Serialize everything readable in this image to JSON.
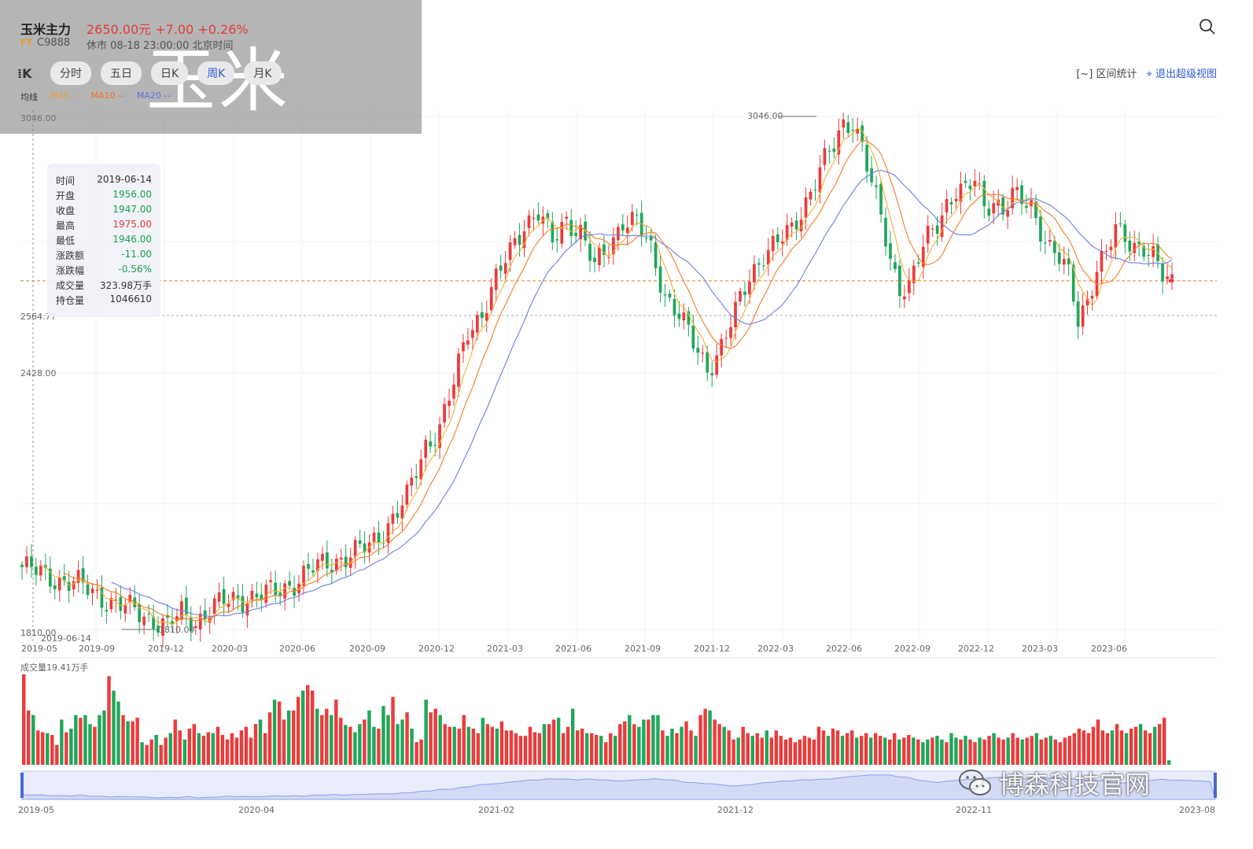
{
  "header": {
    "title": "玉米主力",
    "price_line": "2650.00元 +7.00 +0.26%",
    "badge": "FT",
    "code": "C9888",
    "status": "休市 08-18 23:00:00 北京时间"
  },
  "tabs": [
    {
      "label": "分时"
    },
    {
      "label": "五日"
    },
    {
      "label": "日K"
    },
    {
      "label": "周K",
      "active": true
    },
    {
      "label": "月K"
    }
  ],
  "ma_legend": {
    "label": "均线",
    "ma5": "MA5 --",
    "ma10": "MA10 --",
    "ma20": "MA20 --"
  },
  "overlay_text": "玉米",
  "toolbar": {
    "range_stat": "区间统计",
    "exit_view": "退出超级视图"
  },
  "tooltip": {
    "rows": [
      {
        "label": "时间",
        "value": "2019-06-14",
        "tone": "plain"
      },
      {
        "label": "开盘",
        "value": "1956.00",
        "tone": "green"
      },
      {
        "label": "收盘",
        "value": "1947.00",
        "tone": "green"
      },
      {
        "label": "最高",
        "value": "1975.00",
        "tone": "red"
      },
      {
        "label": "最低",
        "value": "1946.00",
        "tone": "green"
      },
      {
        "label": "涨跌额",
        "value": "-11.00",
        "tone": "green"
      },
      {
        "label": "涨跌幅",
        "value": "-0.56%",
        "tone": "green"
      },
      {
        "label": "成交量",
        "value": "323.98万手",
        "tone": "plain"
      },
      {
        "label": "持仓量",
        "value": "1046610",
        "tone": "plain"
      }
    ]
  },
  "chart_data": {
    "type": "candlestick",
    "y_labels": [
      "3046.00",
      "2564.77",
      "2428.00",
      "1810.00"
    ],
    "y_range": [
      1810,
      3046
    ],
    "max_marker": "3046.00",
    "min_marker": "1810.00",
    "crosshair_date": "2019-06-14",
    "current_price_line": 2650,
    "x_labels": [
      "2019-05",
      "2019-09",
      "2019-12",
      "2020-03",
      "2020-06",
      "2020-09",
      "2020-12",
      "2021-03",
      "2021-06",
      "2021-09",
      "2021-12",
      "2022-03",
      "2022-06",
      "2022-09",
      "2022-12",
      "2023-03",
      "2023-06"
    ],
    "volume_label": "成交量19.41万手",
    "navigator_labels": [
      "2019-05",
      "2020-04",
      "2021-02",
      "2021-12",
      "2022-11",
      "2023-08"
    ],
    "colors": {
      "up": "#ee3a3a",
      "down": "#1fa65a",
      "ma5": "#f2b233",
      "ma10": "#f27c2a",
      "ma20": "#6c7fe0"
    },
    "close_anchors": [
      [
        0,
        1960
      ],
      [
        8,
        1930
      ],
      [
        12,
        1918
      ],
      [
        16,
        1895
      ],
      [
        20,
        1870
      ],
      [
        24,
        1855
      ],
      [
        28,
        1835
      ],
      [
        31,
        1815
      ],
      [
        34,
        1850
      ],
      [
        37,
        1830
      ],
      [
        40,
        1858
      ],
      [
        43,
        1875
      ],
      [
        46,
        1885
      ],
      [
        50,
        1890
      ],
      [
        54,
        1900
      ],
      [
        58,
        1925
      ],
      [
        62,
        1955
      ],
      [
        66,
        1975
      ],
      [
        70,
        1990
      ],
      [
        74,
        2010
      ],
      [
        78,
        2065
      ],
      [
        82,
        2125
      ],
      [
        86,
        2255
      ],
      [
        89,
        2300
      ],
      [
        92,
        2400
      ],
      [
        95,
        2530
      ],
      [
        98,
        2575
      ],
      [
        101,
        2650
      ],
      [
        104,
        2720
      ],
      [
        107,
        2790
      ],
      [
        110,
        2815
      ],
      [
        113,
        2740
      ],
      [
        116,
        2800
      ],
      [
        119,
        2770
      ],
      [
        122,
        2680
      ],
      [
        125,
        2730
      ],
      [
        128,
        2800
      ],
      [
        131,
        2790
      ],
      [
        134,
        2720
      ],
      [
        137,
        2620
      ],
      [
        140,
        2570
      ],
      [
        143,
        2495
      ],
      [
        146,
        2440
      ],
      [
        149,
        2495
      ],
      [
        152,
        2570
      ],
      [
        155,
        2660
      ],
      [
        158,
        2720
      ],
      [
        161,
        2740
      ],
      [
        164,
        2770
      ],
      [
        167,
        2845
      ],
      [
        170,
        2920
      ],
      [
        173,
        2970
      ],
      [
        175,
        3025
      ],
      [
        177,
        3040
      ],
      [
        179,
        2980
      ],
      [
        181,
        2880
      ],
      [
        183,
        2800
      ],
      [
        185,
        2700
      ],
      [
        187,
        2640
      ],
      [
        189,
        2640
      ],
      [
        191,
        2700
      ],
      [
        193,
        2750
      ],
      [
        195,
        2790
      ],
      [
        197,
        2840
      ],
      [
        199,
        2870
      ],
      [
        201,
        2860
      ],
      [
        203,
        2890
      ],
      [
        205,
        2830
      ],
      [
        207,
        2850
      ],
      [
        209,
        2820
      ],
      [
        211,
        2850
      ],
      [
        213,
        2840
      ],
      [
        215,
        2830
      ],
      [
        217,
        2780
      ],
      [
        219,
        2730
      ],
      [
        221,
        2700
      ],
      [
        223,
        2660
      ],
      [
        225,
        2560
      ],
      [
        227,
        2610
      ],
      [
        229,
        2680
      ],
      [
        231,
        2710
      ],
      [
        233,
        2770
      ],
      [
        235,
        2760
      ],
      [
        237,
        2740
      ],
      [
        239,
        2730
      ],
      [
        241,
        2700
      ],
      [
        243,
        2660
      ],
      [
        245,
        2650
      ]
    ],
    "volume_values": [
      1.0,
      0.6,
      0.55,
      0.38,
      0.36,
      0.35,
      0.33,
      0.22,
      0.5,
      0.36,
      0.4,
      0.55,
      0.52,
      0.55,
      0.45,
      0.42,
      0.55,
      0.6,
      0.98,
      0.82,
      0.7,
      0.55,
      0.48,
      0.48,
      0.52,
      0.25,
      0.22,
      0.28,
      0.33,
      0.22,
      0.3,
      0.35,
      0.5,
      0.38,
      0.28,
      0.4,
      0.45,
      0.35,
      0.32,
      0.36,
      0.35,
      0.42,
      0.33,
      0.28,
      0.35,
      0.3,
      0.38,
      0.42,
      0.3,
      0.45,
      0.5,
      0.35,
      0.58,
      0.72,
      0.7,
      0.5,
      0.6,
      0.6,
      0.75,
      0.82,
      0.88,
      0.82,
      0.62,
      0.55,
      0.62,
      0.55,
      0.72,
      0.52,
      0.44,
      0.42,
      0.36,
      0.45,
      0.5,
      0.6,
      0.42,
      0.4,
      0.65,
      0.55,
      0.75,
      0.45,
      0.5,
      0.58,
      0.4,
      0.25,
      0.28,
      0.72,
      0.58,
      0.62,
      0.55,
      0.45,
      0.42,
      0.42,
      0.4,
      0.55,
      0.42,
      0.4,
      0.35,
      0.52,
      0.45,
      0.42,
      0.4,
      0.48,
      0.38,
      0.38,
      0.35,
      0.32,
      0.32,
      0.42,
      0.36,
      0.35,
      0.45,
      0.45,
      0.5,
      0.52,
      0.35,
      0.42,
      0.62,
      0.38,
      0.4,
      0.35,
      0.35,
      0.33,
      0.32,
      0.25,
      0.35,
      0.32,
      0.45,
      0.48,
      0.55,
      0.45,
      0.42,
      0.5,
      0.5,
      0.55,
      0.55,
      0.38,
      0.32,
      0.4,
      0.35,
      0.42,
      0.48,
      0.38,
      0.32,
      0.55,
      0.62,
      0.6,
      0.5,
      0.45,
      0.42,
      0.38,
      0.28,
      0.3,
      0.42,
      0.35,
      0.32,
      0.35,
      0.3,
      0.38,
      0.3,
      0.38,
      0.32,
      0.28,
      0.3,
      0.25,
      0.28,
      0.32,
      0.3,
      0.28,
      0.42,
      0.38,
      0.32,
      0.4,
      0.38,
      0.32,
      0.35,
      0.38,
      0.3,
      0.32,
      0.35,
      0.3,
      0.35,
      0.32,
      0.3,
      0.28,
      0.35,
      0.28,
      0.3,
      0.33,
      0.3,
      0.28,
      0.25,
      0.28,
      0.3,
      0.32,
      0.28,
      0.25,
      0.35,
      0.3,
      0.28,
      0.32,
      0.28,
      0.25,
      0.3,
      0.28,
      0.32,
      0.35,
      0.3,
      0.28,
      0.3,
      0.35,
      0.3,
      0.28,
      0.3,
      0.32,
      0.35,
      0.28,
      0.3,
      0.32,
      0.28,
      0.25,
      0.3,
      0.32,
      0.35,
      0.4,
      0.38,
      0.35,
      0.42,
      0.5,
      0.38,
      0.35,
      0.38,
      0.45,
      0.38,
      0.35,
      0.4,
      0.42,
      0.45,
      0.38,
      0.35,
      0.42,
      0.45,
      0.52,
      0.05
    ]
  },
  "watermark_text": "博森科技官网"
}
